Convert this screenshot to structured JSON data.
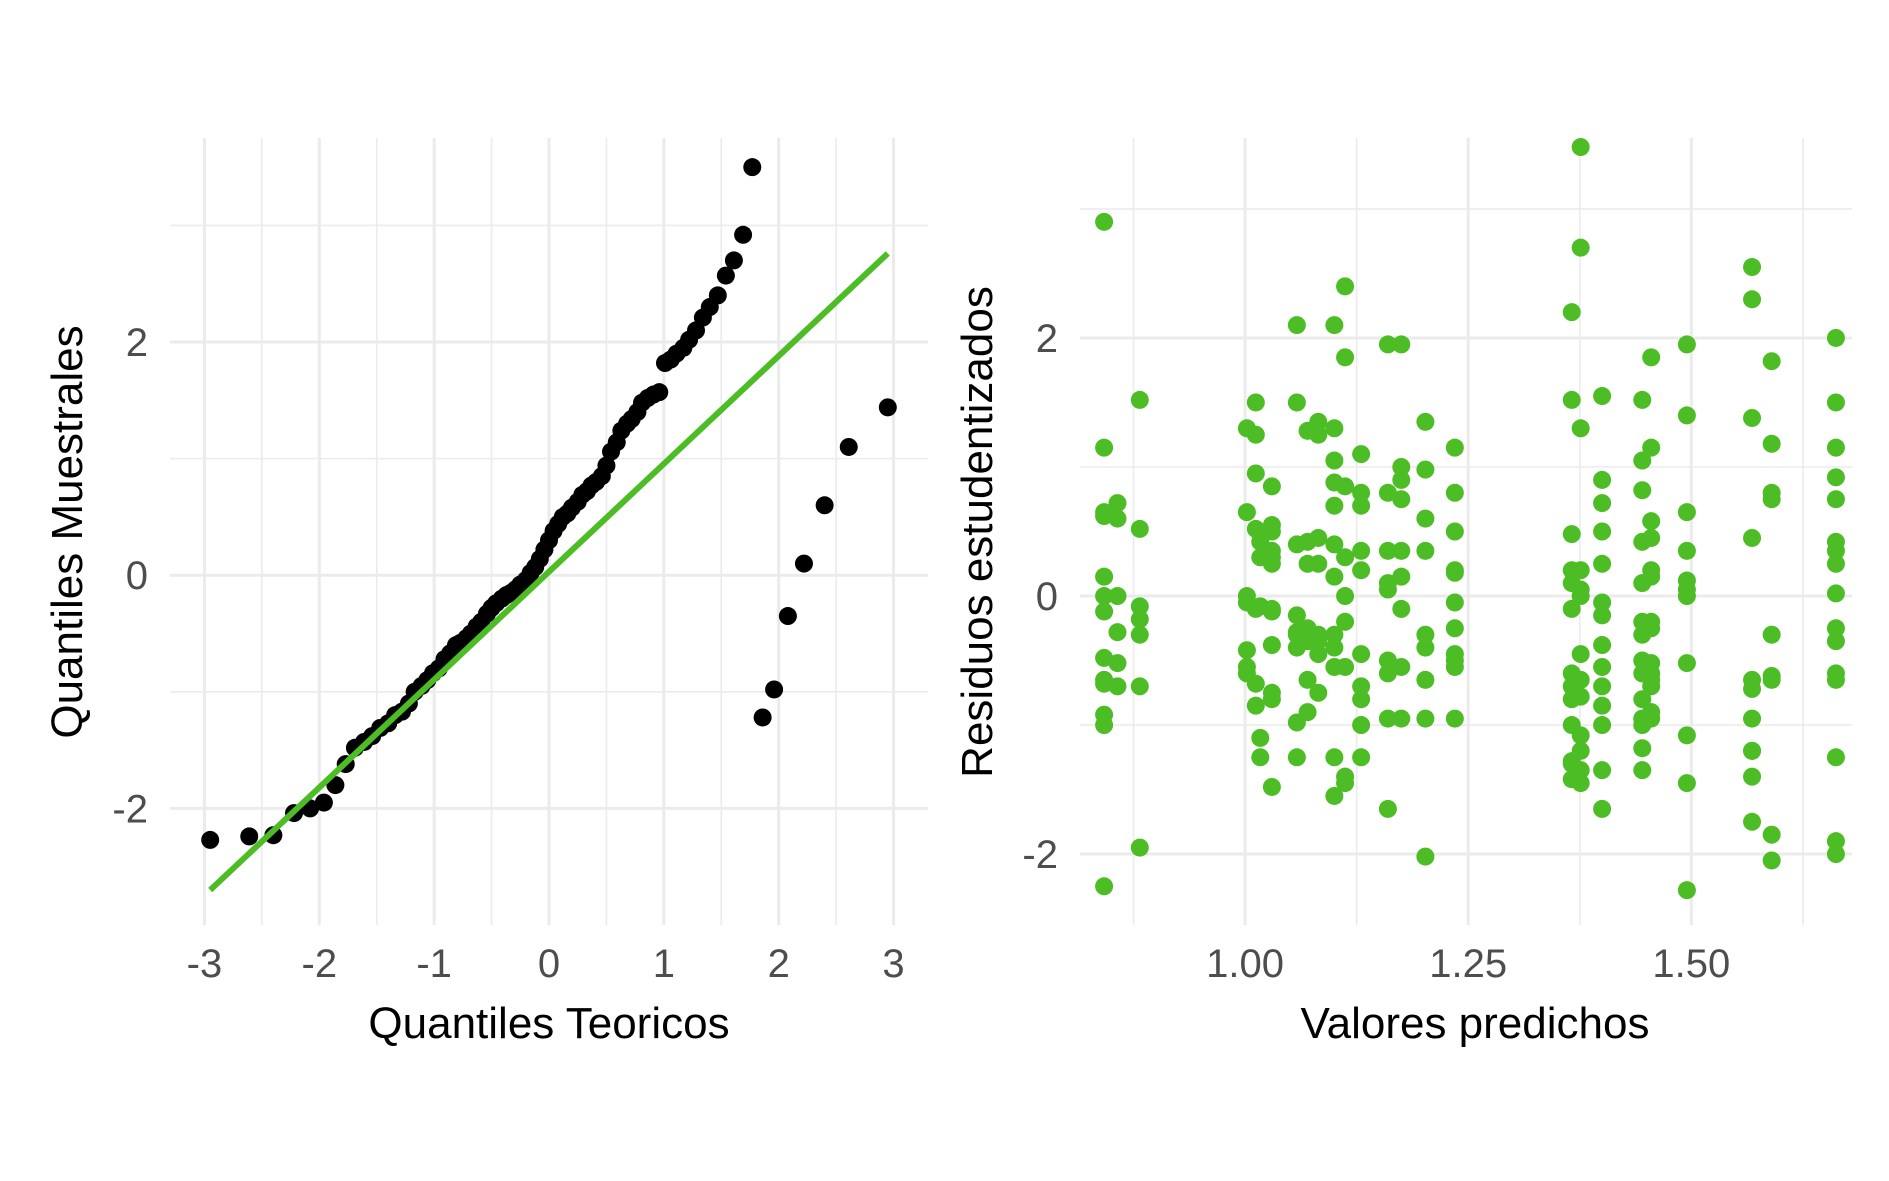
{
  "colors": {
    "point_qq": "#000000",
    "accent": "#4cbd24",
    "grid": "#ebebeb",
    "tick_text": "#4d4d4d"
  },
  "chart_data": [
    {
      "type": "scatter",
      "xlabel": "Quantiles Teoricos",
      "ylabel": "Quantiles Muestrales",
      "xlim": [
        -3.3,
        3.3
      ],
      "ylim": [
        -3.0,
        3.75
      ],
      "xticks": [
        -3,
        -2,
        -1,
        0,
        1,
        2,
        3
      ],
      "xtick_labels": [
        "-3",
        "-2",
        "-1",
        "0",
        "1",
        "2",
        "3"
      ],
      "yticks": [
        -2,
        0,
        2
      ],
      "ytick_labels": [
        "-2",
        "0",
        "2"
      ],
      "grid": true,
      "reference_line": {
        "from": [
          -2.95,
          -2.7
        ],
        "to": [
          2.95,
          2.76
        ]
      },
      "x": [
        -2.95,
        -2.61,
        -2.4,
        -2.22,
        -2.08,
        -1.96,
        -1.86,
        -1.77,
        -1.69,
        -1.61,
        -1.54,
        -1.47,
        -1.4,
        -1.34,
        -1.28,
        -1.22,
        -1.17,
        -1.11,
        -1.06,
        -1.01,
        -0.96,
        -0.91,
        -0.86,
        -0.81,
        -0.77,
        -0.72,
        -0.68,
        -0.63,
        -0.59,
        -0.54,
        -0.5,
        -0.46,
        -0.41,
        -0.37,
        -0.33,
        -0.29,
        -0.25,
        -0.2,
        -0.16,
        -0.12,
        -0.08,
        -0.04,
        0.0,
        0.04,
        0.08,
        0.12,
        0.16,
        0.2,
        0.25,
        0.29,
        0.33,
        0.37,
        0.41,
        0.46,
        0.5,
        0.54,
        0.59,
        0.63,
        0.68,
        0.72,
        0.77,
        0.81,
        0.86,
        0.91,
        0.96,
        1.01,
        1.06,
        1.11,
        1.17,
        1.22,
        1.28,
        1.34,
        1.4,
        1.47,
        1.54,
        1.61,
        1.69,
        1.77,
        1.86,
        1.96,
        2.08,
        2.22,
        2.4,
        2.61,
        2.95
      ],
      "y": [
        -2.27,
        -2.24,
        -2.23,
        -2.04,
        -2.0,
        -1.95,
        -1.8,
        -1.62,
        -1.48,
        -1.43,
        -1.38,
        -1.31,
        -1.27,
        -1.2,
        -1.17,
        -1.1,
        -1.0,
        -0.95,
        -0.9,
        -0.84,
        -0.8,
        -0.72,
        -0.67,
        -0.6,
        -0.58,
        -0.54,
        -0.5,
        -0.44,
        -0.4,
        -0.33,
        -0.28,
        -0.24,
        -0.2,
        -0.17,
        -0.15,
        -0.12,
        -0.08,
        -0.04,
        0.02,
        0.07,
        0.14,
        0.22,
        0.3,
        0.38,
        0.44,
        0.5,
        0.53,
        0.58,
        0.63,
        0.69,
        0.72,
        0.77,
        0.8,
        0.85,
        0.94,
        1.06,
        1.14,
        1.24,
        1.3,
        1.34,
        1.4,
        1.48,
        1.52,
        1.55,
        1.57,
        1.82,
        1.85,
        1.9,
        1.95,
        2.02,
        2.1,
        2.21,
        2.3,
        2.4,
        2.57,
        2.7,
        2.92,
        3.5,
        -1.22,
        -0.98,
        -0.35,
        0.1,
        0.6,
        1.1,
        1.44
      ],
      "series_color": "#000000"
    },
    {
      "type": "scatter",
      "xlabel": "Valores predichos",
      "ylabel": "Residuos estudentizados",
      "xlim": [
        0.815,
        1.68
      ],
      "ylim": [
        -2.55,
        3.55
      ],
      "xticks": [
        1.0,
        1.25,
        1.5
      ],
      "xtick_labels": [
        "1.00",
        "1.25",
        "1.50"
      ],
      "yticks": [
        -2,
        0,
        2
      ],
      "ytick_labels": [
        "-2",
        "0",
        "2"
      ],
      "grid": true,
      "series_color": "#4cbd24",
      "x": [
        0.842,
        0.842,
        0.842,
        0.842,
        0.842,
        0.842,
        0.842,
        0.842,
        0.842,
        0.842,
        0.842,
        0.842,
        0.842,
        0.857,
        0.857,
        0.857,
        0.857,
        0.857,
        0.857,
        0.882,
        0.882,
        0.882,
        0.882,
        0.882,
        0.882,
        0.882,
        1.002,
        1.002,
        1.002,
        1.002,
        1.002,
        1.002,
        1.002,
        1.012,
        1.012,
        1.012,
        1.012,
        1.012,
        1.012,
        1.012,
        1.017,
        1.017,
        1.017,
        1.017,
        1.017,
        1.017,
        1.03,
        1.03,
        1.03,
        1.03,
        1.03,
        1.03,
        1.03,
        1.03,
        1.03,
        1.03,
        1.03,
        1.03,
        1.058,
        1.058,
        1.058,
        1.058,
        1.058,
        1.058,
        1.058,
        1.058,
        1.058,
        1.07,
        1.07,
        1.07,
        1.07,
        1.07,
        1.07,
        1.07,
        1.082,
        1.082,
        1.082,
        1.082,
        1.082,
        1.082,
        1.082,
        1.082,
        1.1,
        1.1,
        1.1,
        1.1,
        1.1,
        1.1,
        1.1,
        1.1,
        1.1,
        1.1,
        1.1,
        1.1,
        1.112,
        1.112,
        1.112,
        1.112,
        1.112,
        1.112,
        1.112,
        1.112,
        1.112,
        1.13,
        1.13,
        1.13,
        1.13,
        1.13,
        1.13,
        1.13,
        1.13,
        1.13,
        1.13,
        1.16,
        1.16,
        1.16,
        1.16,
        1.16,
        1.16,
        1.16,
        1.16,
        1.16,
        1.175,
        1.175,
        1.175,
        1.175,
        1.175,
        1.175,
        1.175,
        1.175,
        1.175,
        1.202,
        1.202,
        1.202,
        1.202,
        1.202,
        1.202,
        1.202,
        1.202,
        1.202,
        1.235,
        1.235,
        1.235,
        1.235,
        1.235,
        1.235,
        1.235,
        1.235,
        1.235,
        1.235,
        1.235,
        1.366,
        1.366,
        1.366,
        1.366,
        1.366,
        1.366,
        1.366,
        1.366,
        1.366,
        1.366,
        1.366,
        1.366,
        1.366,
        1.376,
        1.376,
        1.376,
        1.376,
        1.376,
        1.376,
        1.376,
        1.376,
        1.376,
        1.376,
        1.376,
        1.376,
        1.376,
        1.4,
        1.4,
        1.4,
        1.4,
        1.4,
        1.4,
        1.4,
        1.4,
        1.4,
        1.4,
        1.4,
        1.4,
        1.4,
        1.4,
        1.445,
        1.445,
        1.445,
        1.445,
        1.445,
        1.445,
        1.445,
        1.445,
        1.445,
        1.445,
        1.445,
        1.445,
        1.445,
        1.445,
        1.455,
        1.455,
        1.455,
        1.455,
        1.455,
        1.455,
        1.455,
        1.455,
        1.455,
        1.455,
        1.455,
        1.455,
        1.455,
        1.455,
        1.495,
        1.495,
        1.495,
        1.495,
        1.495,
        1.495,
        1.495,
        1.495,
        1.495,
        1.495,
        1.495,
        1.568,
        1.568,
        1.568,
        1.568,
        1.568,
        1.568,
        1.568,
        1.568,
        1.568,
        1.568,
        1.568,
        1.59,
        1.59,
        1.59,
        1.59,
        1.59,
        1.59,
        1.59,
        1.59,
        1.59,
        1.662,
        1.662,
        1.662,
        1.662,
        1.662,
        1.662,
        1.662,
        1.662,
        1.662,
        1.662,
        1.662,
        1.662,
        1.662,
        1.662,
        1.662
      ],
      "y": [
        2.9,
        1.15,
        0.65,
        0.62,
        0.15,
        0.0,
        -0.12,
        -0.48,
        -0.65,
        -0.68,
        -0.92,
        -1.0,
        -2.25,
        0.72,
        0.0,
        -0.28,
        -0.52,
        -0.7,
        0.6,
        1.52,
        0.52,
        -0.08,
        -0.18,
        -0.3,
        -0.7,
        -1.95,
        1.3,
        0.65,
        0.0,
        -0.42,
        -0.55,
        -0.6,
        -0.05,
        1.5,
        0.95,
        0.52,
        -0.1,
        -0.68,
        -0.85,
        1.25,
        0.48,
        0.42,
        -0.08,
        -1.1,
        -1.25,
        0.3,
        0.85,
        0.55,
        0.35,
        0.3,
        -0.12,
        -0.38,
        -0.8,
        -0.75,
        -0.1,
        -1.48,
        0.25,
        0.5,
        2.1,
        1.5,
        0.4,
        -0.28,
        -0.98,
        -1.25,
        -0.3,
        -0.4,
        -0.15,
        1.28,
        0.42,
        0.25,
        -0.25,
        -0.65,
        -0.35,
        -0.9,
        1.35,
        1.25,
        0.25,
        -0.35,
        -0.3,
        -0.75,
        0.45,
        -0.45,
        2.1,
        1.3,
        1.05,
        0.88,
        0.7,
        0.4,
        0.15,
        -0.3,
        -0.55,
        -1.25,
        -1.55,
        -0.4,
        2.4,
        1.85,
        0.85,
        0.3,
        0.0,
        -0.2,
        -0.55,
        -1.4,
        -1.45,
        1.1,
        0.8,
        0.7,
        0.35,
        0.2,
        -0.45,
        -0.7,
        -0.8,
        -1.0,
        -1.25,
        1.95,
        0.8,
        0.35,
        0.1,
        0.05,
        -0.5,
        -0.6,
        -0.95,
        -1.65,
        1.95,
        1.0,
        0.9,
        0.75,
        0.35,
        0.15,
        -0.1,
        -0.55,
        -0.95,
        1.35,
        0.98,
        0.6,
        0.35,
        -0.3,
        -0.4,
        -0.65,
        -0.95,
        -2.02,
        1.15,
        0.8,
        0.5,
        0.2,
        -0.05,
        -0.25,
        -0.45,
        -0.5,
        -0.55,
        -0.95,
        0.18,
        2.2,
        1.52,
        0.48,
        0.2,
        0.1,
        -0.1,
        -0.6,
        -0.8,
        -1.0,
        -1.28,
        -1.3,
        -1.42,
        -0.7,
        3.48,
        2.7,
        1.3,
        0.2,
        0.0,
        -0.45,
        -0.65,
        -1.08,
        -1.2,
        -1.35,
        -1.45,
        -0.78,
        0.05,
        1.55,
        0.9,
        0.72,
        0.5,
        0.25,
        -0.05,
        -0.15,
        -0.38,
        -0.55,
        -0.7,
        -1.0,
        -1.35,
        -1.65,
        -0.85,
        1.52,
        1.05,
        0.82,
        0.42,
        0.1,
        -0.3,
        -0.5,
        -0.6,
        -0.8,
        -1.0,
        -1.18,
        -1.35,
        -0.2,
        -0.95,
        1.85,
        1.15,
        0.58,
        0.15,
        -0.2,
        -0.52,
        -0.6,
        -0.65,
        -0.9,
        -0.95,
        -0.25,
        -0.7,
        0.2,
        0.45,
        1.95,
        1.4,
        0.65,
        0.35,
        0.12,
        0.0,
        -0.52,
        -1.08,
        -1.45,
        -2.28,
        0.05,
        2.55,
        2.3,
        1.38,
        0.45,
        -0.65,
        -0.72,
        -0.95,
        -1.2,
        -1.4,
        -1.75,
        -1.2,
        1.82,
        1.18,
        0.8,
        0.75,
        -0.3,
        -0.62,
        -1.85,
        -2.05,
        -0.65,
        2.0,
        1.5,
        1.15,
        0.92,
        0.75,
        0.42,
        0.35,
        0.25,
        0.02,
        -0.25,
        -0.35,
        -0.6,
        -0.65,
        -1.25,
        -1.9
      ],
      "x_extra": [
        1.662
      ],
      "y_extra": [
        -2.0
      ]
    }
  ]
}
